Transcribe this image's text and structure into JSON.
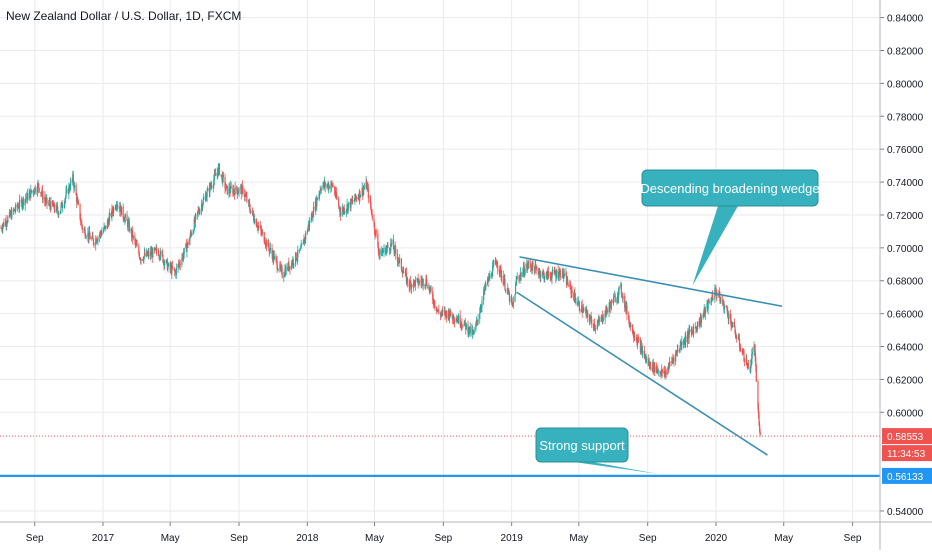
{
  "title": "New Zealand Dollar / U.S. Dollar, 1D, FXCM",
  "colors": {
    "up": "#26a69a",
    "down": "#ef5350",
    "trendline": "#3a8fb0",
    "support_line": "#2196f3",
    "callout_fill": "#36b1bd",
    "price_tag": "#ef5350",
    "support_tag": "#2196f3",
    "grid": "#e8eaed"
  },
  "chart_data": {
    "type": "candlestick",
    "title": "New Zealand Dollar / U.S. Dollar, 1D, FXCM",
    "xlabel": "",
    "ylabel": "",
    "x_range": [
      "2016-07-01",
      "2020-10-20"
    ],
    "ylim": [
      0.5333,
      0.8507
    ],
    "grid": true,
    "y_ticks": [
      "0.84000",
      "0.82000",
      "0.80000",
      "0.78000",
      "0.76000",
      "0.74000",
      "0.72000",
      "0.70000",
      "0.68000",
      "0.66000",
      "0.64000",
      "0.62000",
      "0.60000",
      "0.54000"
    ],
    "x_ticks": [
      {
        "label": "Sep",
        "date": "2016-09-01"
      },
      {
        "label": "2017",
        "date": "2017-01-01"
      },
      {
        "label": "May",
        "date": "2017-05-01"
      },
      {
        "label": "Sep",
        "date": "2017-09-01"
      },
      {
        "label": "2018",
        "date": "2018-01-01"
      },
      {
        "label": "May",
        "date": "2018-05-01"
      },
      {
        "label": "Sep",
        "date": "2018-09-01"
      },
      {
        "label": "2019",
        "date": "2019-01-01"
      },
      {
        "label": "May",
        "date": "2019-05-01"
      },
      {
        "label": "Sep",
        "date": "2019-09-01"
      },
      {
        "label": "2020",
        "date": "2020-01-01"
      },
      {
        "label": "May",
        "date": "2020-05-01"
      },
      {
        "label": "Sep",
        "date": "2020-09-01"
      }
    ],
    "price_path": [
      [
        "2016-07-01",
        0.712
      ],
      [
        "2016-08-01",
        0.725
      ],
      [
        "2016-09-07",
        0.738
      ],
      [
        "2016-09-20",
        0.728
      ],
      [
        "2016-10-15",
        0.722
      ],
      [
        "2016-11-08",
        0.742
      ],
      [
        "2016-11-25",
        0.712
      ],
      [
        "2016-12-15",
        0.704
      ],
      [
        "2017-01-05",
        0.712
      ],
      [
        "2017-01-25",
        0.728
      ],
      [
        "2017-02-15",
        0.714
      ],
      [
        "2017-03-09",
        0.694
      ],
      [
        "2017-04-10",
        0.698
      ],
      [
        "2017-04-28",
        0.688
      ],
      [
        "2017-05-10",
        0.685
      ],
      [
        "2017-06-01",
        0.702
      ],
      [
        "2017-06-20",
        0.722
      ],
      [
        "2017-07-27",
        0.748
      ],
      [
        "2017-08-10",
        0.735
      ],
      [
        "2017-09-08",
        0.735
      ],
      [
        "2017-09-25",
        0.72
      ],
      [
        "2017-10-20",
        0.703
      ],
      [
        "2017-11-17",
        0.684
      ],
      [
        "2017-12-20",
        0.698
      ],
      [
        "2018-01-26",
        0.738
      ],
      [
        "2018-02-15",
        0.738
      ],
      [
        "2018-03-01",
        0.722
      ],
      [
        "2018-03-20",
        0.727
      ],
      [
        "2018-04-17",
        0.738
      ],
      [
        "2018-05-10",
        0.696
      ],
      [
        "2018-06-01",
        0.702
      ],
      [
        "2018-07-01",
        0.678
      ],
      [
        "2018-08-01",
        0.68
      ],
      [
        "2018-08-24",
        0.66
      ],
      [
        "2018-09-10",
        0.66
      ],
      [
        "2018-10-01",
        0.656
      ],
      [
        "2018-10-25",
        0.647
      ],
      [
        "2018-11-15",
        0.676
      ],
      [
        "2018-12-05",
        0.692
      ],
      [
        "2019-01-03",
        0.664
      ],
      [
        "2019-01-10",
        0.681
      ],
      [
        "2019-02-01",
        0.69
      ],
      [
        "2019-03-01",
        0.683
      ],
      [
        "2019-04-01",
        0.685
      ],
      [
        "2019-05-01",
        0.665
      ],
      [
        "2019-06-01",
        0.652
      ],
      [
        "2019-07-15",
        0.675
      ],
      [
        "2019-08-01",
        0.653
      ],
      [
        "2019-09-01",
        0.63
      ],
      [
        "2019-10-01",
        0.623
      ],
      [
        "2019-10-31",
        0.642
      ],
      [
        "2019-12-01",
        0.654
      ],
      [
        "2019-12-31",
        0.674
      ],
      [
        "2020-01-20",
        0.662
      ],
      [
        "2020-02-10",
        0.643
      ],
      [
        "2020-03-01",
        0.625
      ],
      [
        "2020-03-09",
        0.642
      ],
      [
        "2020-03-18",
        0.592
      ],
      [
        "2020-03-20",
        0.5855
      ]
    ],
    "annotations": [
      {
        "type": "trendline",
        "from": [
          "2019-01-15",
          0.6945
        ],
        "to": [
          "2020-04-28",
          0.6645
        ]
      },
      {
        "type": "trendline",
        "from": [
          "2019-01-10",
          0.673
        ],
        "to": [
          "2020-04-02",
          0.574
        ]
      },
      {
        "type": "horizontal_line",
        "price": 0.56133
      },
      {
        "type": "callout",
        "text": "Descending broadening wedge",
        "pointer": [
          "2019-11-20",
          0.677
        ]
      },
      {
        "type": "callout",
        "text": "Strong support",
        "pointer": [
          "2019-09-20",
          0.5625
        ]
      }
    ],
    "last_price": {
      "label": "0.58553",
      "value": 0.58553
    },
    "countdown": "11:34:53",
    "support_label": {
      "label": "0.56133",
      "value": 0.56133
    }
  }
}
